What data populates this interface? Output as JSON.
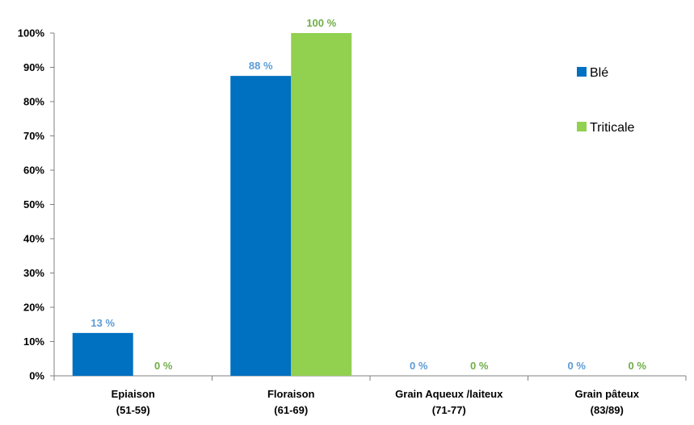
{
  "chart_data": {
    "type": "bar",
    "categories": [
      [
        "Epiaison",
        "(51-59)"
      ],
      [
        "Floraison",
        "(61-69)"
      ],
      [
        "Grain Aqueux /laiteux",
        "(71-77)"
      ],
      [
        "Grain pâteux",
        "(83/89)"
      ]
    ],
    "series": [
      {
        "name": "Blé",
        "values": [
          12.5,
          87.5,
          0,
          0
        ],
        "labels": [
          "13 %",
          "88 %",
          "0 %",
          "0 %"
        ],
        "color": "#0070C0",
        "label_color": "#5B9BD5"
      },
      {
        "name": "Triticale",
        "values": [
          0,
          100,
          0,
          0
        ],
        "labels": [
          "0 %",
          "100 %",
          "0 %",
          "0 %"
        ],
        "color": "#92D050",
        "label_color": "#70AD47"
      }
    ],
    "yticks": [
      "0%",
      "10%",
      "20%",
      "30%",
      "40%",
      "50%",
      "60%",
      "70%",
      "80%",
      "90%",
      "100%"
    ],
    "ylim": [
      0,
      100
    ],
    "grid": false,
    "legend_position": "right"
  }
}
